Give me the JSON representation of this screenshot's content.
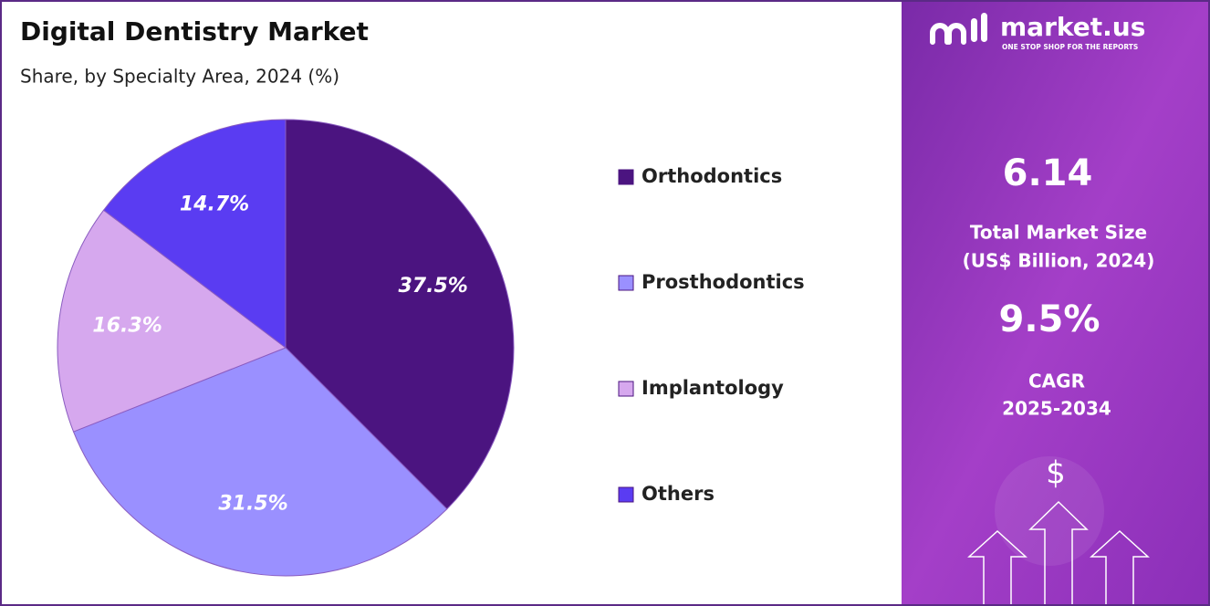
{
  "chart_data": {
    "type": "pie",
    "title": "Digital Dentistry Market",
    "subtitle": "Share, by Specialty Area, 2024 (%)",
    "categories": [
      "Orthodontics",
      "Prosthodontics",
      "Implantology",
      "Others"
    ],
    "values": [
      37.5,
      31.5,
      16.3,
      14.7
    ],
    "value_labels": [
      "37.5%",
      "31.5%",
      "16.3%",
      "14.7%"
    ],
    "colors": [
      "#4b1480",
      "#9a90ff",
      "#d6a8ee",
      "#5a3cf2"
    ],
    "legend": "right"
  },
  "panel": {
    "brand": "market.us",
    "tagline": "ONE STOP SHOP FOR THE REPORTS",
    "market_size": "6.14",
    "market_size_label": "Total Market Size",
    "market_size_unit": "(US$ Billion, 2024)",
    "cagr": "9.5%",
    "cagr_label": "CAGR",
    "cagr_period": "2025-2034",
    "currency_icon": "$"
  }
}
